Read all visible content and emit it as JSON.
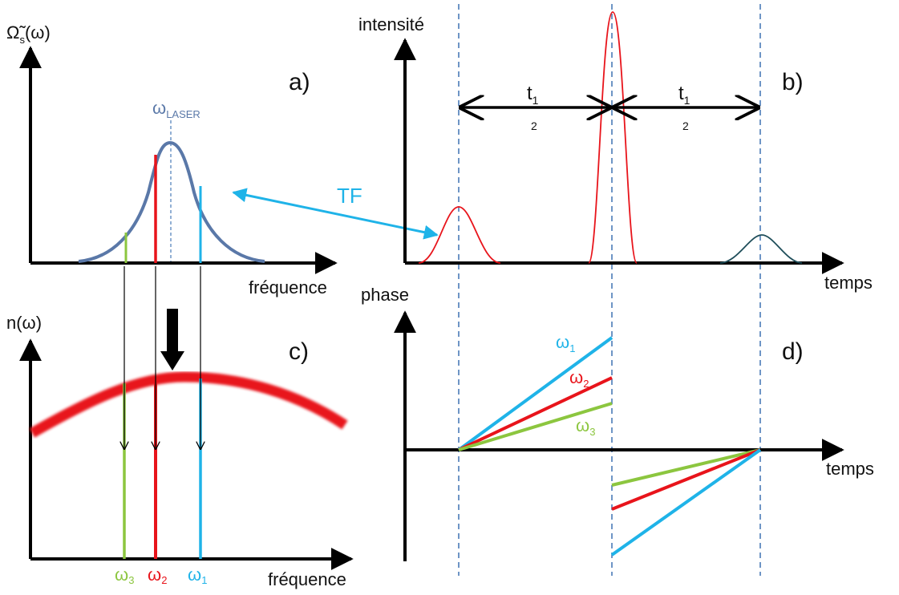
{
  "colors": {
    "red": "#e8141b",
    "blue": "#1fb3e8",
    "green": "#8cc63f",
    "slate": "#5a78a8",
    "dash": "#4a7bb7",
    "dark": "#1f4e5a",
    "tf_arrow": "#1fb3e8"
  },
  "panel_a": {
    "ylabel_main": "Ω̃",
    "ylabel_sub": "s",
    "ylabel_tail": "(ω)",
    "xlabel": "fréquence",
    "letter": "a)",
    "laser_main": "ω",
    "laser_sub": "LASER"
  },
  "panel_b": {
    "ylabel": "intensité",
    "xlabel": "temps",
    "letter": "b)",
    "interval1_main": "t",
    "interval1_sub": "1",
    "interval1_den": "2",
    "interval2_main": "t",
    "interval2_sub": "1",
    "interval2_den": "2"
  },
  "panel_c": {
    "ylabel": "n(ω)",
    "xlabel": "fréquence",
    "letter": "c)",
    "w3_main": "ω",
    "w3_sub": "3",
    "w2_main": "ω",
    "w2_sub": "2",
    "w1_main": "ω",
    "w1_sub": "1"
  },
  "panel_d": {
    "ylabel": "phase",
    "xlabel": "temps",
    "letter": "d)",
    "w1_main": "ω",
    "w1_sub": "1",
    "w2_main": "ω",
    "w2_sub": "2",
    "w3_main": "ω",
    "w3_sub": "3"
  },
  "tf_label": "TF"
}
